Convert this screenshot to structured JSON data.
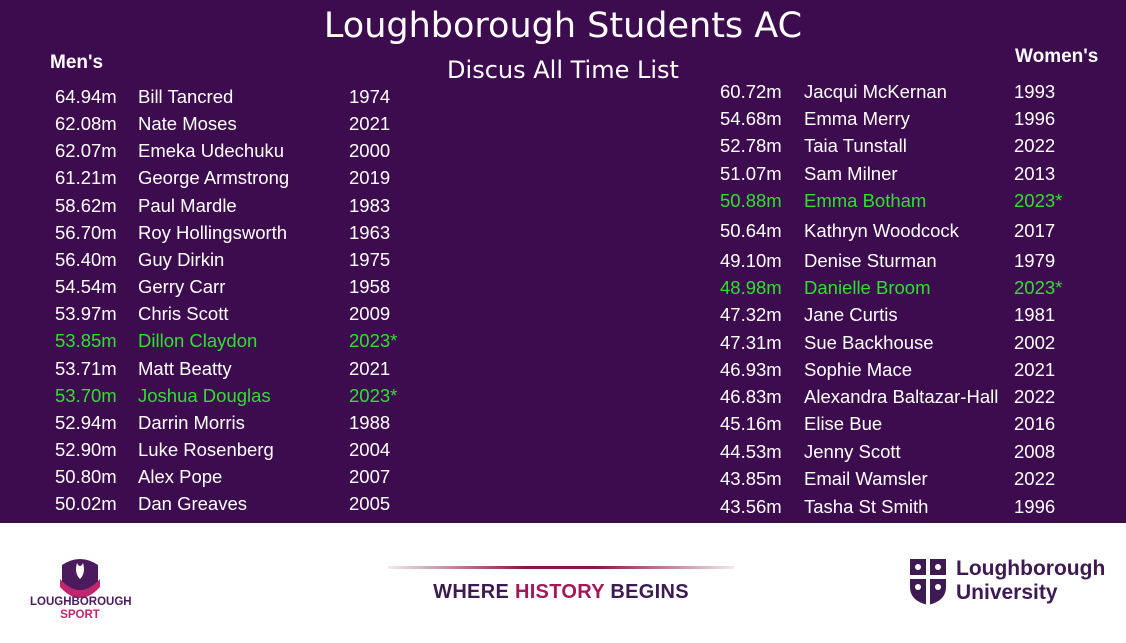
{
  "title": "Loughborough Students AC",
  "subtitle": "Discus All Time List",
  "mens_heading": "Men's",
  "womens_heading": "Women's",
  "mens": [
    {
      "mark": "64.94m",
      "name": "Bill Tancred",
      "year": "1974",
      "recent": false
    },
    {
      "mark": "62.08m",
      "name": "Nate Moses",
      "year": "2021",
      "recent": false
    },
    {
      "mark": "62.07m",
      "name": "Emeka Udechuku",
      "year": "2000",
      "recent": false
    },
    {
      "mark": "61.21m",
      "name": "George Armstrong",
      "year": "2019",
      "recent": false
    },
    {
      "mark": "58.62m",
      "name": "Paul Mardle",
      "year": "1983",
      "recent": false
    },
    {
      "mark": "56.70m",
      "name": "Roy Hollingsworth",
      "year": "1963",
      "recent": false
    },
    {
      "mark": "56.40m",
      "name": "Guy Dirkin",
      "year": "1975",
      "recent": false
    },
    {
      "mark": "54.54m",
      "name": "Gerry Carr",
      "year": "1958",
      "recent": false
    },
    {
      "mark": "53.97m",
      "name": "Chris Scott",
      "year": "2009",
      "recent": false
    },
    {
      "mark": "53.85m",
      "name": "Dillon Claydon",
      "year": "2023*",
      "recent": true
    },
    {
      "mark": "53.71m",
      "name": "Matt Beatty",
      "year": "2021",
      "recent": false
    },
    {
      "mark": "53.70m",
      "name": "Joshua Douglas",
      "year": "2023*",
      "recent": true
    },
    {
      "mark": "52.94m",
      "name": "Darrin Morris",
      "year": "1988",
      "recent": false
    },
    {
      "mark": "52.90m",
      "name": "Luke Rosenberg",
      "year": "2004",
      "recent": false
    },
    {
      "mark": "50.80m",
      "name": "Alex Pope",
      "year": "2007",
      "recent": false
    },
    {
      "mark": "50.02m",
      "name": "Dan Greaves",
      "year": "2005",
      "recent": false
    }
  ],
  "womens": [
    {
      "mark": "60.72m",
      "name": "Jacqui McKernan",
      "year": "1993",
      "recent": false
    },
    {
      "mark": "54.68m",
      "name": "Emma Merry",
      "year": "1996",
      "recent": false
    },
    {
      "mark": "52.78m",
      "name": "Taia Tunstall",
      "year": "2022",
      "recent": false
    },
    {
      "mark": "51.07m",
      "name": "Sam Milner",
      "year": "2013",
      "recent": false
    },
    {
      "mark": "50.88m",
      "name": "Emma Botham",
      "year": "2023*",
      "recent": true
    },
    {
      "mark": "50.64m",
      "name": "Kathryn Woodcock",
      "year": "2017",
      "recent": false
    },
    {
      "mark": "49.10m",
      "name": "Denise Sturman",
      "year": "1979",
      "recent": false
    },
    {
      "mark": "48.98m",
      "name": "Danielle Broom",
      "year": "2023*",
      "recent": true
    },
    {
      "mark": "47.32m",
      "name": "Jane Curtis",
      "year": "1981",
      "recent": false
    },
    {
      "mark": "47.31m",
      "name": "Sue Backhouse",
      "year": "2002",
      "recent": false
    },
    {
      "mark": "46.93m",
      "name": "Sophie Mace",
      "year": "2021",
      "recent": false
    },
    {
      "mark": "46.83m",
      "name": "Alexandra Baltazar-Hall",
      "year": "2022",
      "recent": false
    },
    {
      "mark": "45.16m",
      "name": "Elise Bue",
      "year": "2016",
      "recent": false
    },
    {
      "mark": "44.53m",
      "name": "Jenny Scott",
      "year": "2008",
      "recent": false
    },
    {
      "mark": "43.85m",
      "name": "Email Wamsler",
      "year": "2022",
      "recent": false
    },
    {
      "mark": "43.56m",
      "name": "Tasha St Smith",
      "year": "1996",
      "recent": false
    }
  ],
  "footer": {
    "left_logo_line1": "LOUGHBOROUGH",
    "left_logo_line2": "SPORT",
    "tagline_part1": "WHERE ",
    "tagline_highlight": "HISTORY",
    "tagline_part2": " BEGINS",
    "right_logo_line1": "Loughborough",
    "right_logo_line2": "University"
  },
  "colors": {
    "background": "#3d0c4e",
    "recent_highlight": "#2fe02f",
    "text": "#ffffff"
  }
}
